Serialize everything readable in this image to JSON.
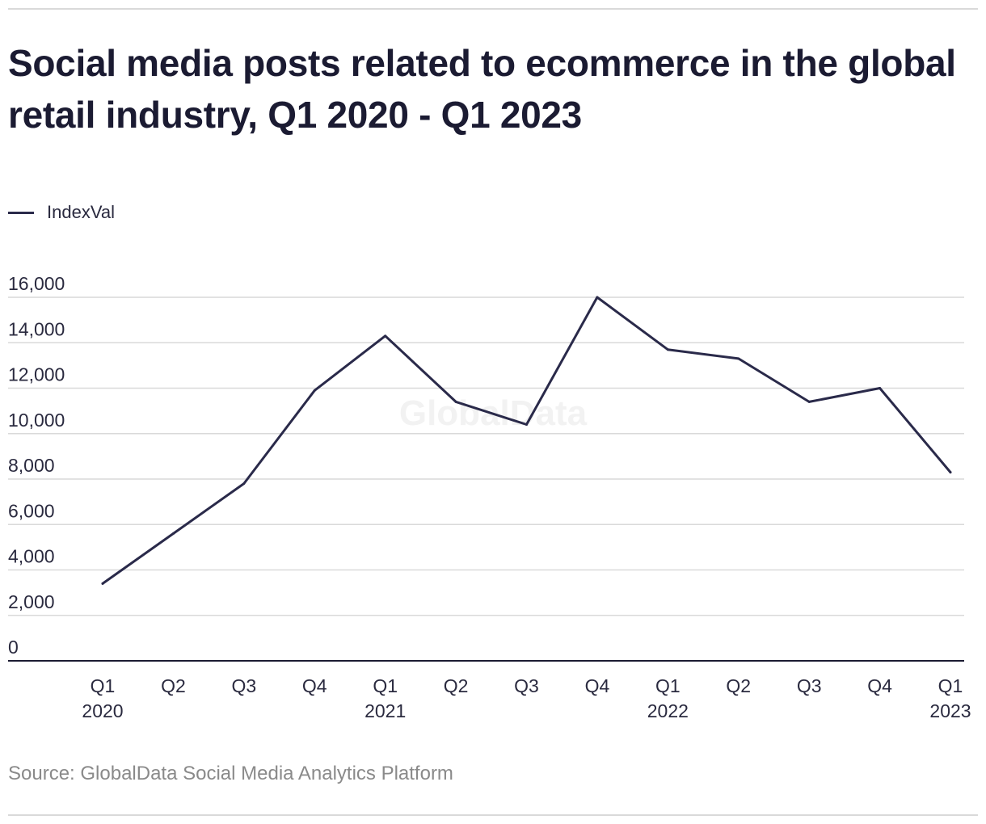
{
  "title": "Social media posts related to ecommerce in the global retail industry, Q1 2020 - Q1 2023",
  "source": "Source: GlobalData Social Media Analytics Platform",
  "watermark": "GlobalData",
  "colors": {
    "line": "#2a2a4a",
    "grid": "#d9d9d9",
    "text": "#1b1b32",
    "source": "#8a8a8a"
  },
  "chart_data": {
    "type": "line",
    "title": "Social media posts related to ecommerce in the global retail industry, Q1 2020 - Q1 2023",
    "xlabel": "",
    "ylabel": "",
    "legend": {
      "placement": "top-left",
      "entries": [
        "IndexVal"
      ]
    },
    "grid": true,
    "ylim": [
      0,
      16000
    ],
    "yticks": [
      0,
      2000,
      4000,
      6000,
      8000,
      10000,
      12000,
      14000,
      16000
    ],
    "ytick_labels": [
      "0",
      "2,000",
      "4,000",
      "6,000",
      "8,000",
      "10,000",
      "12,000",
      "14,000",
      "16,000"
    ],
    "categories": [
      [
        "Q1",
        "2020"
      ],
      [
        "Q2",
        ""
      ],
      [
        "Q3",
        ""
      ],
      [
        "Q4",
        ""
      ],
      [
        "Q1",
        "2021"
      ],
      [
        "Q2",
        ""
      ],
      [
        "Q3",
        ""
      ],
      [
        "Q4",
        ""
      ],
      [
        "Q1",
        "2022"
      ],
      [
        "Q2",
        ""
      ],
      [
        "Q3",
        ""
      ],
      [
        "Q4",
        ""
      ],
      [
        "Q1",
        "2023"
      ]
    ],
    "series": [
      {
        "name": "IndexVal",
        "values": [
          3400,
          5600,
          7800,
          11900,
          14300,
          11400,
          10400,
          16000,
          13700,
          13300,
          11400,
          12000,
          8300
        ]
      }
    ]
  }
}
